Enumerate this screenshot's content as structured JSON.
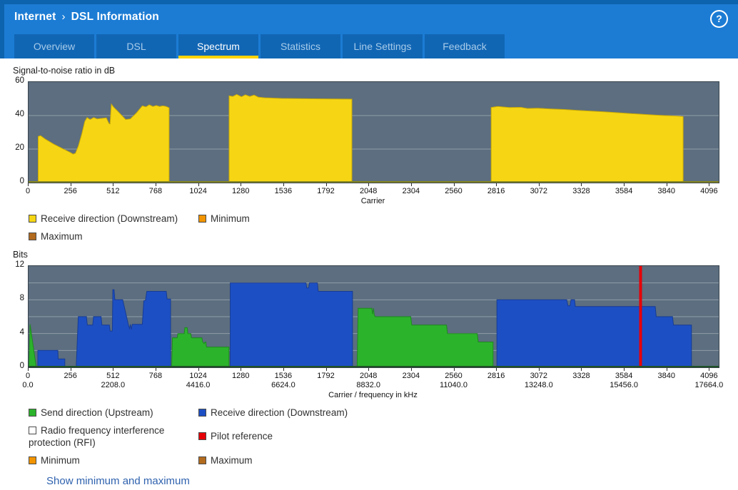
{
  "header": {
    "breadcrumb": [
      "Internet",
      "DSL Information"
    ],
    "separator": "›",
    "help_label": "?"
  },
  "tabs": [
    {
      "label": "Overview",
      "active": false
    },
    {
      "label": "DSL",
      "active": false
    },
    {
      "label": "Spectrum",
      "active": true
    },
    {
      "label": "Statistics",
      "active": false
    },
    {
      "label": "Line Settings",
      "active": false
    },
    {
      "label": "Feedback",
      "active": false
    }
  ],
  "footer": {
    "link_label": "Show minimum and maximum"
  },
  "colors": {
    "frame": "#0e63ae",
    "header": "#1c7cd4",
    "tab_bg": "#1166b4",
    "tab_text": "#a7cbe9",
    "tab_underline": "#ffd400",
    "link": "#2f62ae",
    "chart_bg": "#5c6e7f",
    "grid": "rgba(255,255,255,0.33)"
  },
  "chart_data": [
    {
      "type": "area",
      "title": "Signal-to-noise ratio in dB",
      "xlabel": "Carrier",
      "ylabel": "dB",
      "xlim": [
        0,
        4096
      ],
      "ylim": [
        0,
        60
      ],
      "yticks": [
        0,
        20,
        40,
        60
      ],
      "gridlines": [
        20,
        40
      ],
      "xticks": [
        0,
        256,
        512,
        768,
        1024,
        1280,
        1536,
        1792,
        2048,
        2304,
        2560,
        2816,
        3072,
        3328,
        3584,
        3840,
        4096
      ],
      "axis_color": "#85851f",
      "series": [
        {
          "name": "Receive direction (Downstream)",
          "color": "#f6d614",
          "stroke": "#caa906",
          "segments": [
            [
              [
                58,
                27.5
              ],
              [
                72,
                28
              ],
              [
                100,
                26
              ],
              [
                150,
                23
              ],
              [
                200,
                20.5
              ],
              [
                250,
                18
              ],
              [
                268,
                17
              ],
              [
                282,
                17.5
              ],
              [
                300,
                22
              ],
              [
                320,
                29
              ],
              [
                338,
                36.5
              ],
              [
                352,
                38.8
              ],
              [
                370,
                37.6
              ],
              [
                392,
                38.8
              ],
              [
                412,
                38
              ],
              [
                448,
                38.4
              ],
              [
                468,
                38.6
              ],
              [
                484,
                35.2
              ],
              [
                490,
                35
              ],
              [
                498,
                46.8
              ],
              [
                512,
                45
              ],
              [
                532,
                43
              ],
              [
                556,
                40.5
              ],
              [
                584,
                37.6
              ],
              [
                612,
                38
              ],
              [
                648,
                41.5
              ],
              [
                684,
                45.8
              ],
              [
                706,
                45.2
              ],
              [
                726,
                46.4
              ],
              [
                748,
                45.4
              ],
              [
                768,
                46
              ],
              [
                788,
                45.4
              ],
              [
                808,
                45.8
              ],
              [
                828,
                45.4
              ],
              [
                845,
                44.6
              ]
            ],
            [
              [
                1206,
                51.8
              ],
              [
                1228,
                51.4
              ],
              [
                1252,
                52.6
              ],
              [
                1280,
                51.2
              ],
              [
                1304,
                52.4
              ],
              [
                1330,
                51.4
              ],
              [
                1356,
                52.2
              ],
              [
                1382,
                51
              ],
              [
                1420,
                50.6
              ],
              [
                1520,
                50.2
              ],
              [
                1700,
                50
              ],
              [
                1944,
                49.8
              ]
            ],
            [
              [
                2782,
                44.8
              ],
              [
                2820,
                45.4
              ],
              [
                2890,
                44.8
              ],
              [
                2960,
                44.9
              ],
              [
                3000,
                44.2
              ],
              [
                3060,
                44.4
              ],
              [
                3140,
                43.9
              ],
              [
                3220,
                43.6
              ],
              [
                3300,
                43.1
              ],
              [
                3380,
                42.7
              ],
              [
                3460,
                42.2
              ],
              [
                3540,
                41.7
              ],
              [
                3620,
                41.2
              ],
              [
                3700,
                40.7
              ],
              [
                3780,
                40.2
              ],
              [
                3850,
                39.9
              ],
              [
                3900,
                39.7
              ],
              [
                3936,
                39.4
              ]
            ]
          ]
        }
      ],
      "legend_rows": [
        [
          {
            "label": "Receive direction (Downstream)",
            "color": "#f6d614"
          },
          {
            "label": "Minimum",
            "color": "#f29400"
          }
        ],
        [
          {
            "label": "Maximum",
            "color": "#b26b1e"
          }
        ]
      ]
    },
    {
      "type": "area",
      "title": "Bits",
      "xlabel": "Carrier / frequency in kHz",
      "ylabel": "Bits",
      "xlim": [
        0,
        4096
      ],
      "ylim": [
        0,
        12
      ],
      "yticks": [
        0,
        4,
        8,
        12
      ],
      "gridlines": [
        2,
        4,
        6,
        8,
        10
      ],
      "xticks": [
        0,
        256,
        512,
        768,
        1024,
        1280,
        1536,
        1792,
        2048,
        2304,
        2560,
        2816,
        3072,
        3328,
        3584,
        3840,
        4096
      ],
      "xticks2": [
        {
          "x": 0,
          "label": "0.0"
        },
        {
          "x": 512,
          "label": "2208.0"
        },
        {
          "x": 1024,
          "label": "4416.0"
        },
        {
          "x": 1536,
          "label": "6624.0"
        },
        {
          "x": 2048,
          "label": "8832.0"
        },
        {
          "x": 2560,
          "label": "11040.0"
        },
        {
          "x": 3072,
          "label": "13248.0"
        },
        {
          "x": 3584,
          "label": "15456.0"
        },
        {
          "x": 4096,
          "label": "17664.0"
        }
      ],
      "axis_color": "#1f5226",
      "series": [
        {
          "name": "Send direction (Upstream)",
          "color": "#2cb32c",
          "stroke": "#1d8a1d",
          "segments": [
            [
              [
                3,
                0.3
              ],
              [
                9,
                5.1
              ],
              [
                14,
                4.4
              ],
              [
                44,
                0.3
              ]
            ],
            [
              [
                861,
                0.3
              ],
              [
                865,
                3.5
              ],
              [
                894,
                3.5
              ],
              [
                898,
                4
              ],
              [
                936,
                4
              ],
              [
                940,
                4.7
              ],
              [
                954,
                4.7
              ],
              [
                958,
                4
              ],
              [
                976,
                4
              ],
              [
                980,
                3.5
              ],
              [
                1042,
                3.5
              ],
              [
                1047,
                3
              ],
              [
                1056,
                2.8
              ],
              [
                1061,
                3
              ],
              [
                1066,
                3
              ],
              [
                1070,
                2.4
              ],
              [
                1205,
                2.4
              ]
            ],
            [
              [
                1976,
                0.3
              ],
              [
                1982,
                7
              ],
              [
                2064,
                7
              ],
              [
                2069,
                6.3
              ],
              [
                2074,
                7
              ],
              [
                2079,
                6.2
              ],
              [
                2084,
                6
              ],
              [
                2298,
                6
              ],
              [
                2304,
                5
              ],
              [
                2513,
                5
              ],
              [
                2519,
                4
              ],
              [
                2698,
                4
              ],
              [
                2704,
                3
              ],
              [
                2793,
                3
              ]
            ]
          ]
        },
        {
          "name": "Receive direction (Downstream)",
          "color": "#1d4fc4",
          "stroke": "#163c96",
          "segments": [
            [
              [
                56,
                2
              ],
              [
                176,
                2
              ],
              [
                178,
                1
              ],
              [
                218,
                1
              ]
            ],
            [
              [
                287,
                0.3
              ],
              [
                299,
                6
              ],
              [
                348,
                6
              ],
              [
                353,
                5
              ],
              [
                386,
                5
              ],
              [
                391,
                6
              ],
              [
                436,
                6
              ],
              [
                441,
                5
              ],
              [
                486,
                5
              ],
              [
                490,
                4.3
              ],
              [
                504,
                4.3
              ],
              [
                507,
                9.2
              ],
              [
                514,
                9.2
              ],
              [
                519,
                8
              ],
              [
                566,
                8
              ],
              [
                601,
                5
              ],
              [
                607,
                4.6
              ],
              [
                613,
                5.1
              ],
              [
                618,
                4.5
              ],
              [
                624,
                5.1
              ],
              [
                684,
                5.1
              ],
              [
                693,
                7.9
              ],
              [
                703,
                7.9
              ],
              [
                711,
                9
              ],
              [
                828,
                9
              ],
              [
                833,
                8.1
              ],
              [
                854,
                8.1
              ]
            ],
            [
              [
                1213,
                10
              ],
              [
                1668,
                10
              ],
              [
                1673,
                9.4
              ],
              [
                1684,
                9.4
              ],
              [
                1689,
                10
              ],
              [
                1737,
                10
              ],
              [
                1742,
                9
              ],
              [
                1948,
                9
              ]
            ],
            [
              [
                2816,
                8
              ],
              [
                3236,
                8
              ],
              [
                3243,
                7.3
              ],
              [
                3256,
                7.3
              ],
              [
                3262,
                8
              ],
              [
                3283,
                8
              ],
              [
                3288,
                7.2
              ],
              [
                3768,
                7.2
              ],
              [
                3774,
                6
              ],
              [
                3872,
                6
              ],
              [
                3878,
                5
              ],
              [
                3986,
                5
              ]
            ]
          ]
        }
      ],
      "pilot": {
        "label": "Pilot reference",
        "x": 3680,
        "color": "#e60008"
      },
      "legend_rows": [
        [
          {
            "label": "Send direction (Upstream)",
            "color": "#2cb32c"
          },
          {
            "label": "Receive direction (Downstream)",
            "color": "#1d4fc4"
          }
        ],
        [
          {
            "label": "Radio frequency interference protection (RFI)",
            "color": "#ffffff"
          },
          {
            "label": "Pilot reference",
            "color": "#e60008"
          }
        ],
        [
          {
            "label": "Minimum",
            "color": "#f29400"
          },
          {
            "label": "Maximum",
            "color": "#b26b1e"
          }
        ]
      ]
    }
  ]
}
